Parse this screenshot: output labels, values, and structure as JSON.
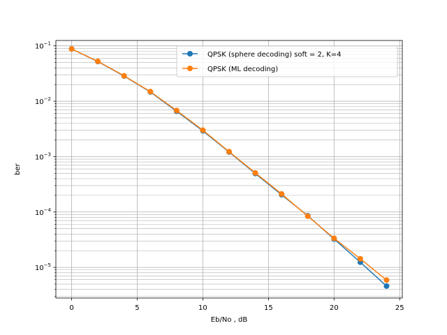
{
  "chart_data": {
    "type": "line",
    "title": "",
    "xlabel": "Eb/No , dB",
    "ylabel": "ber",
    "xlim": [
      -1.2,
      25.2
    ],
    "ylim": [
      2.8e-06,
      0.125
    ],
    "yscale": "log",
    "grid": "major and minor",
    "legend_position": "top-right",
    "x_ticks": [
      0,
      5,
      10,
      15,
      20,
      25
    ],
    "y_tick_exponents": [
      -5,
      -4,
      -3,
      -2,
      -1
    ],
    "x": [
      0,
      2,
      4,
      6,
      8,
      10,
      12,
      14,
      16,
      18,
      20,
      22,
      24
    ],
    "series": [
      {
        "name": "QPSK (sphere decoding) soft = 2, K=4",
        "color": "#1f77b4",
        "values": [
          0.088,
          0.052,
          0.0285,
          0.0147,
          0.0066,
          0.00292,
          0.00121,
          0.000494,
          0.000205,
          8.55e-05,
          3.25e-05,
          1.24e-05,
          4.6e-06
        ]
      },
      {
        "name": "QPSK (ML decoding)",
        "color": "#ff7f0e",
        "values": [
          0.088,
          0.0525,
          0.0288,
          0.0149,
          0.0068,
          0.003,
          0.00123,
          0.000508,
          0.000212,
          8.4e-05,
          3.35e-05,
          1.43e-05,
          5.9e-06
        ]
      }
    ]
  }
}
